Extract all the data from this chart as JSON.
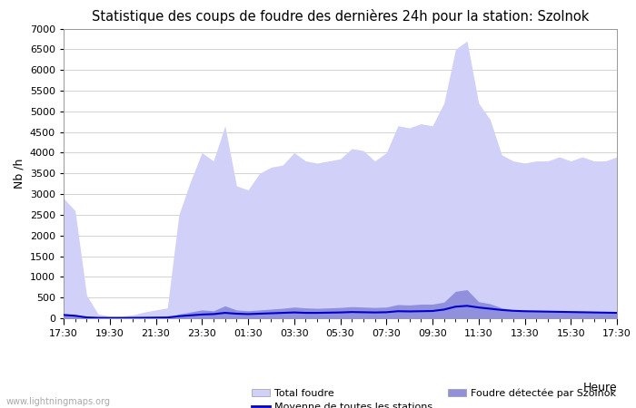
{
  "title": "Statistique des coups de foudre des dernières 24h pour la station: Szolnok",
  "ylabel": "Nb /h",
  "xlabel_side": "Heure",
  "ylim": [
    0,
    7000
  ],
  "yticks": [
    0,
    500,
    1000,
    1500,
    2000,
    2500,
    3000,
    3500,
    4000,
    4500,
    5000,
    5500,
    6000,
    6500,
    7000
  ],
  "xtick_labels": [
    "17:30",
    "19:30",
    "21:30",
    "23:30",
    "01:30",
    "03:30",
    "05:30",
    "07:30",
    "09:30",
    "11:30",
    "13:30",
    "15:30",
    "17:30"
  ],
  "background_color": "#ffffff",
  "grid_color": "#cccccc",
  "watermark": "www.lightningmaps.org",
  "total_foudre_color": "#d0d0f8",
  "szolnok_color": "#9090dd",
  "moyenne_color": "#0000cc",
  "legend_total": "Total foudre",
  "legend_moyenne": "Moyenne de toutes les stations",
  "legend_szolnok": "Foudre détectée par Szolnok",
  "total_foudre_values": [
    2900,
    2600,
    550,
    100,
    50,
    50,
    80,
    150,
    200,
    250,
    2500,
    3300,
    4000,
    3800,
    4650,
    3200,
    3100,
    3500,
    3650,
    3700,
    4000,
    3800,
    3750,
    3800,
    3850,
    4100,
    4050,
    3800,
    4000,
    4650,
    4600,
    4700,
    4650,
    5200,
    6500,
    6700,
    5200,
    4800,
    3950,
    3800,
    3750,
    3800,
    3800,
    3900,
    3800,
    3900,
    3800,
    3800,
    3900
  ],
  "szolnok_values": [
    100,
    80,
    30,
    10,
    5,
    5,
    8,
    10,
    15,
    20,
    100,
    150,
    200,
    180,
    300,
    200,
    180,
    200,
    220,
    240,
    270,
    250,
    240,
    250,
    260,
    280,
    270,
    260,
    270,
    330,
    320,
    340,
    340,
    390,
    650,
    690,
    400,
    350,
    250,
    200,
    180,
    170,
    160,
    170,
    160,
    160,
    150,
    150,
    140
  ],
  "moyenne_values": [
    80,
    60,
    20,
    10,
    8,
    8,
    10,
    12,
    15,
    18,
    50,
    70,
    90,
    100,
    130,
    110,
    100,
    110,
    120,
    130,
    140,
    130,
    130,
    135,
    140,
    150,
    145,
    140,
    145,
    170,
    165,
    170,
    175,
    210,
    280,
    300,
    260,
    230,
    200,
    180,
    170,
    165,
    160,
    155,
    150,
    145,
    140,
    135,
    130
  ]
}
